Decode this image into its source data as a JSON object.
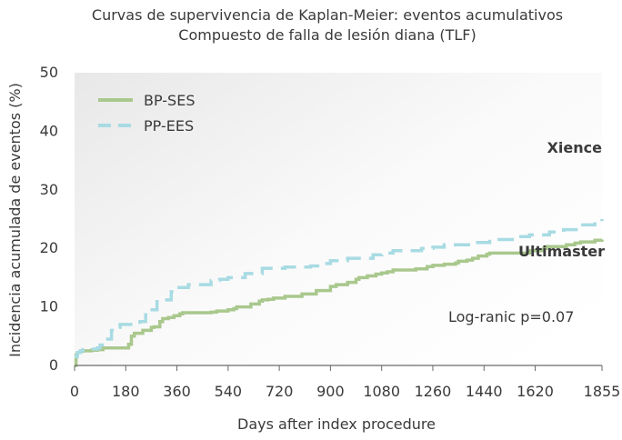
{
  "chart_data": {
    "type": "line",
    "title_line1": "Curvas de supervivencia de Kaplan-Meier: eventos acumulativos",
    "title_line2": "Compuesto de falla de lesión diana (TLF)",
    "xlabel": "Days after index procedure",
    "ylabel": "Incidencia acumulada de eventos (%)",
    "xlim": [
      0,
      1855
    ],
    "ylim": [
      0,
      50
    ],
    "x_ticks": [
      0,
      180,
      360,
      540,
      720,
      900,
      1080,
      1260,
      1440,
      1620,
      1855
    ],
    "y_ticks": [
      0,
      10,
      20,
      30,
      40,
      50
    ],
    "grid": false,
    "legend_position": "top-left",
    "series": [
      {
        "name": "BP-SES",
        "end_label": "Ultimaster",
        "color": "#a9c88d",
        "style": "solid",
        "x": [
          0,
          5,
          10,
          20,
          30,
          40,
          60,
          80,
          100,
          120,
          150,
          180,
          190,
          200,
          210,
          240,
          270,
          280,
          300,
          310,
          330,
          350,
          370,
          380,
          400,
          480,
          500,
          540,
          560,
          570,
          620,
          650,
          660,
          680,
          700,
          740,
          800,
          850,
          900,
          920,
          960,
          990,
          1000,
          1030,
          1060,
          1080,
          1100,
          1120,
          1200,
          1240,
          1260,
          1300,
          1340,
          1350,
          1380,
          1400,
          1420,
          1450,
          1460,
          1600,
          1650,
          1660,
          1730,
          1760,
          1780,
          1830,
          1855
        ],
        "values": [
          0,
          1.8,
          2.2,
          2.4,
          2.5,
          2.5,
          2.6,
          2.7,
          3,
          3,
          3,
          3,
          3.6,
          5,
          5.5,
          6,
          6.5,
          6.6,
          7.5,
          8,
          8.2,
          8.5,
          8.8,
          9,
          9,
          9.1,
          9.3,
          9.5,
          9.7,
          10,
          10.5,
          11,
          11.2,
          11.3,
          11.5,
          11.8,
          12.2,
          12.8,
          13.5,
          13.8,
          14.2,
          14.7,
          15,
          15.3,
          15.6,
          15.8,
          16,
          16.3,
          16.5,
          16.9,
          17.1,
          17.3,
          17.5,
          17.8,
          18,
          18.3,
          18.7,
          19,
          19.2,
          19.6,
          20,
          20.3,
          20.6,
          20.9,
          21.1,
          21.4,
          21.5
        ]
      },
      {
        "name": "PP-EES",
        "end_label": "Xience",
        "color": "#a8dbe3",
        "style": "dashed",
        "x": [
          0,
          10,
          20,
          30,
          50,
          80,
          90,
          110,
          130,
          150,
          160,
          200,
          220,
          230,
          250,
          290,
          340,
          360,
          400,
          480,
          510,
          540,
          560,
          600,
          660,
          740,
          830,
          880,
          900,
          960,
          1050,
          1080,
          1120,
          1220,
          1260,
          1300,
          1400,
          1460,
          1560,
          1600,
          1670,
          1720,
          1770,
          1830,
          1855
        ],
        "values": [
          1.5,
          2.2,
          2.5,
          2.7,
          2.8,
          3,
          3.5,
          4.5,
          6,
          6.5,
          7,
          7,
          7,
          7.5,
          9.5,
          11.2,
          12.6,
          13.3,
          13.8,
          14.5,
          14.7,
          15,
          15,
          15.7,
          16.6,
          16.8,
          17,
          17.4,
          17.9,
          18.3,
          18.9,
          19.2,
          19.6,
          20,
          20.2,
          20.6,
          21,
          21.5,
          22,
          22.3,
          22.8,
          23.2,
          24,
          24.6,
          25
        ]
      }
    ],
    "annotation": "Log-ranic p=0.07"
  }
}
